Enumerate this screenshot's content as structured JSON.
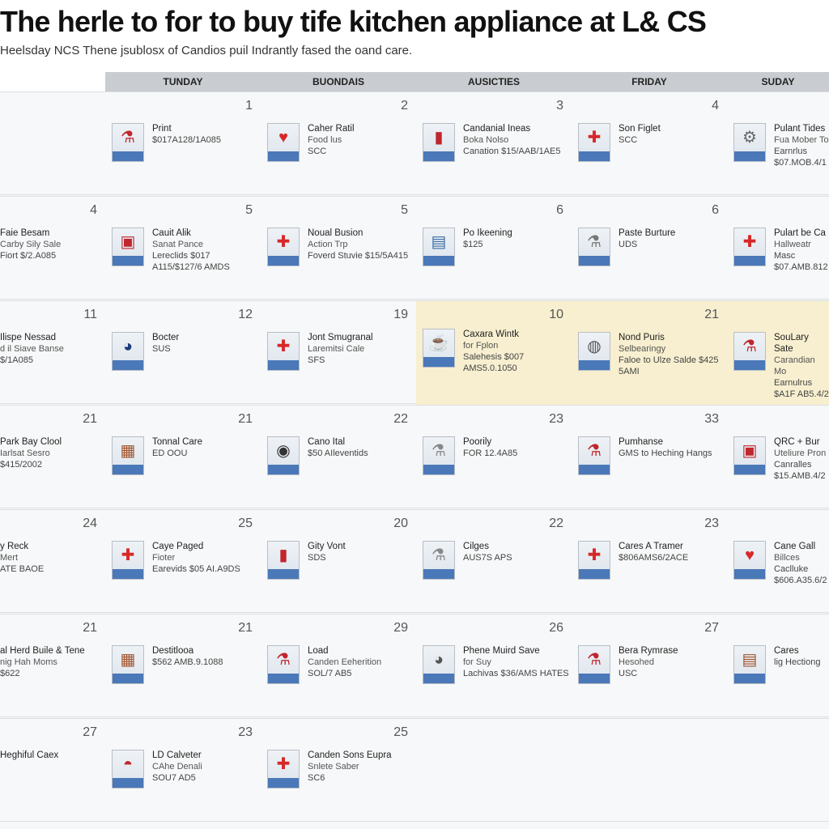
{
  "header": {
    "title": "The herle to for to buy tife kitchen appliance at L& CS",
    "subtitle": "Heelsday NCS Thene jsublosx of Candios puil Indrantly fased the oand care."
  },
  "weekdays": [
    "TUNDAY",
    "BUONDAIS",
    "AUSICTIES",
    "FRIDAY",
    "SUDAY"
  ],
  "weeks": [
    {
      "days": [
        {
          "num": "",
          "items": []
        },
        {
          "num": "1",
          "items": [
            {
              "name": "Print",
              "meta": "",
              "price": "$017A128/1A085",
              "icon": "mixer-icon",
              "glyph": "⚗",
              "color": "#c0262d"
            }
          ]
        },
        {
          "num": "2",
          "items": [
            {
              "name": "Caher Ratil",
              "meta": "Food lus",
              "price": "SCC",
              "icon": "heart-icon",
              "glyph": "♥",
              "color": "#d62828"
            }
          ]
        },
        {
          "num": "3",
          "items": [
            {
              "name": "Candanial Ineas",
              "meta": "Boka Nolso",
              "price": "Canation $15/AAB/1AE5",
              "icon": "kettle-icon",
              "glyph": "▮",
              "color": "#c0262d"
            }
          ]
        },
        {
          "num": "4",
          "items": [
            {
              "name": "Son Figlet",
              "meta": "",
              "price": "SCC",
              "icon": "flag-icon",
              "glyph": "✚",
              "color": "#d62828"
            }
          ]
        },
        {
          "num": "",
          "items": [
            {
              "name": "Pulant Tides",
              "meta": "Fua Mober To",
              "price": "Earnrlus $07.MOB.4/1",
              "icon": "grinder-icon",
              "glyph": "⚙",
              "color": "#666666"
            }
          ]
        }
      ]
    },
    {
      "days": [
        {
          "num": "4",
          "items": [
            {
              "name": "Faie Besam",
              "meta": "Carby Sily Sale",
              "price": "Fiort $/2.A085",
              "icon": "",
              "glyph": "",
              "color": ""
            }
          ]
        },
        {
          "num": "5",
          "items": [
            {
              "name": "Cauit Alik",
              "meta": "Sanat Pance",
              "price": "Lereclids $017 A115/$127/6 AMDS",
              "icon": "oven-icon",
              "glyph": "▣",
              "color": "#c0262d"
            }
          ]
        },
        {
          "num": "5",
          "items": [
            {
              "name": "Noual Busion",
              "meta": "Action Trp",
              "price": "Foverd Stuvie $15/5A415",
              "icon": "flag-icon",
              "glyph": "✚",
              "color": "#d62828"
            }
          ]
        },
        {
          "num": "6",
          "items": [
            {
              "name": "Po Ikeening",
              "meta": "",
              "price": "$125",
              "icon": "dishwasher-icon",
              "glyph": "▤",
              "color": "#3a6ea5"
            }
          ]
        },
        {
          "num": "6",
          "items": [
            {
              "name": "Paste Burture",
              "meta": "",
              "price": "UDS",
              "icon": "blender-icon",
              "glyph": "⚗",
              "color": "#777777"
            }
          ]
        },
        {
          "num": "",
          "items": [
            {
              "name": "Pulart be Ca",
              "meta": "Hallweatr",
              "price": "Masc $07.AMB.812",
              "icon": "flag-icon",
              "glyph": "✚",
              "color": "#d62828"
            }
          ]
        }
      ]
    },
    {
      "days": [
        {
          "num": "11",
          "items": [
            {
              "name": "Ilispe Nessad",
              "meta": "d il Siave Banse",
              "price": "$/1A085",
              "icon": "",
              "glyph": "",
              "color": ""
            }
          ]
        },
        {
          "num": "12",
          "items": [
            {
              "name": "Bocter",
              "meta": "",
              "price": "SUS",
              "icon": "pot-icon",
              "glyph": "◕",
              "color": "#1a3c7a"
            }
          ]
        },
        {
          "num": "19",
          "items": [
            {
              "name": "Jont Smugranal",
              "meta": "Laremitsi Cale",
              "price": "SFS",
              "icon": "flag-icon",
              "glyph": "✚",
              "color": "#d62828"
            }
          ]
        },
        {
          "num": "10",
          "items": [
            {
              "name": "Caxara Wintk",
              "meta": "for Fplon",
              "price": "Salehesis $007 AMS5.0.1050",
              "icon": "coffee-maker-icon",
              "glyph": "☕",
              "color": "#3a6ea5"
            }
          ]
        },
        {
          "num": "21",
          "items": [
            {
              "name": "Nond Puris",
              "meta": "Selbearingy",
              "price": "Faloe to Ulze Salde $425 5AMI",
              "icon": "globe-mixer-icon",
              "glyph": "◍",
              "color": "#555555"
            }
          ]
        },
        {
          "num": "",
          "items": [
            {
              "name": "SouLary Sate",
              "meta": "Carandian Mo",
              "price": "Earnulrus $A1F AB5.4/2",
              "icon": "stand-mixer-icon",
              "glyph": "⚗",
              "color": "#c0262d"
            }
          ]
        }
      ]
    },
    {
      "days": [
        {
          "num": "21",
          "items": [
            {
              "name": "Park Bay Clool",
              "meta": "Iarlsat Sesro",
              "price": "$415/2002",
              "icon": "",
              "glyph": "",
              "color": ""
            }
          ]
        },
        {
          "num": "21",
          "items": [
            {
              "name": "Tonnal Care",
              "meta": "",
              "price": "ED OOU",
              "icon": "toaster-icon",
              "glyph": "▦",
              "color": "#a0522d"
            }
          ]
        },
        {
          "num": "22",
          "items": [
            {
              "name": "Cano Ital",
              "meta": "",
              "price": "$50 AIleventids",
              "icon": "washer-icon",
              "glyph": "◉",
              "color": "#333333"
            }
          ]
        },
        {
          "num": "23",
          "items": [
            {
              "name": "Poorily",
              "meta": "",
              "price": "FOR 12.4A85",
              "icon": "juicer-icon",
              "glyph": "⚗",
              "color": "#888888"
            }
          ]
        },
        {
          "num": "33",
          "items": [
            {
              "name": "Pumhanse",
              "meta": "",
              "price": "GMS to Heching Hangs",
              "icon": "stand-mixer-icon",
              "glyph": "⚗",
              "color": "#c0262d"
            }
          ]
        },
        {
          "num": "",
          "items": [
            {
              "name": "QRC + Bur",
              "meta": "Uteliure Pron",
              "price": "Canralles $15.AMB.4/2",
              "icon": "cabinet-icon",
              "glyph": "▣",
              "color": "#c0262d"
            }
          ]
        }
      ]
    },
    {
      "days": [
        {
          "num": "24",
          "items": [
            {
              "name": "y Reck",
              "meta": "Mert",
              "price": "ATE BAOE",
              "icon": "",
              "glyph": "",
              "color": ""
            }
          ]
        },
        {
          "num": "25",
          "items": [
            {
              "name": "Caye Paged",
              "meta": "Fioter",
              "price": "Earevids $05 AI.A9DS",
              "icon": "flag-icon",
              "glyph": "✚",
              "color": "#d62828"
            }
          ]
        },
        {
          "num": "20",
          "items": [
            {
              "name": "Gity Vont",
              "meta": "",
              "price": "SDS",
              "icon": "kettle-icon",
              "glyph": "▮",
              "color": "#c0262d"
            }
          ]
        },
        {
          "num": "22",
          "items": [
            {
              "name": "Cilges",
              "meta": "",
              "price": "AUS7S APS",
              "icon": "juicer-icon",
              "glyph": "⚗",
              "color": "#888888"
            }
          ]
        },
        {
          "num": "23",
          "items": [
            {
              "name": "Cares A Tramer",
              "meta": "",
              "price": "$806AMS6/2ACE",
              "icon": "flag-icon",
              "glyph": "✚",
              "color": "#d62828"
            }
          ]
        },
        {
          "num": "",
          "items": [
            {
              "name": "Cane Gall",
              "meta": "Billces",
              "price": "Caclluke $606.A35.6/2",
              "icon": "heart-icon",
              "glyph": "♥",
              "color": "#d62828"
            }
          ]
        }
      ]
    },
    {
      "days": [
        {
          "num": "21",
          "items": [
            {
              "name": "al Herd Buile & Tene",
              "meta": "nig Hah Moms",
              "price": "$622",
              "icon": "",
              "glyph": "",
              "color": ""
            }
          ]
        },
        {
          "num": "21",
          "items": [
            {
              "name": "Destitlooa",
              "meta": "",
              "price": "$562 AMB.9.1088",
              "icon": "oven-icon",
              "glyph": "▦",
              "color": "#a0522d"
            }
          ]
        },
        {
          "num": "29",
          "items": [
            {
              "name": "Load",
              "meta": "Canden Eeherition",
              "price": "SOL/7 AB5",
              "icon": "stand-mixer-icon",
              "glyph": "⚗",
              "color": "#c0262d"
            }
          ]
        },
        {
          "num": "26",
          "items": [
            {
              "name": "Phene Muird Save",
              "meta": "for Suy",
              "price": "Lachivas $36/AMS HATES",
              "icon": "pot-icon",
              "glyph": "◕",
              "color": "#555555"
            }
          ]
        },
        {
          "num": "27",
          "items": [
            {
              "name": "Bera Rymrase",
              "meta": "Hesohed",
              "price": "USC",
              "icon": "stand-mixer-icon",
              "glyph": "⚗",
              "color": "#c0262d"
            }
          ]
        },
        {
          "num": "",
          "items": [
            {
              "name": "Cares",
              "meta": "",
              "price": "lig Hectiong",
              "icon": "cabinet-icon",
              "glyph": "▤",
              "color": "#a0522d"
            }
          ]
        }
      ]
    },
    {
      "days": [
        {
          "num": "27",
          "items": [
            {
              "name": "Heghiful Caex",
              "meta": "",
              "price": "",
              "icon": "",
              "glyph": "",
              "color": ""
            }
          ]
        },
        {
          "num": "23",
          "items": [
            {
              "name": "LD Calveter",
              "meta": "CAhe Denali",
              "price": "SOU7 AD5",
              "icon": "cooker-icon",
              "glyph": "◓",
              "color": "#c0262d"
            }
          ]
        },
        {
          "num": "25",
          "items": [
            {
              "name": "Canden Sons Eupra",
              "meta": "Snlete Saber",
              "price": "SC6",
              "icon": "flag-icon",
              "glyph": "✚",
              "color": "#d62828"
            }
          ]
        },
        {
          "num": "",
          "items": []
        },
        {
          "num": "",
          "items": []
        },
        {
          "num": "",
          "items": []
        }
      ]
    }
  ]
}
